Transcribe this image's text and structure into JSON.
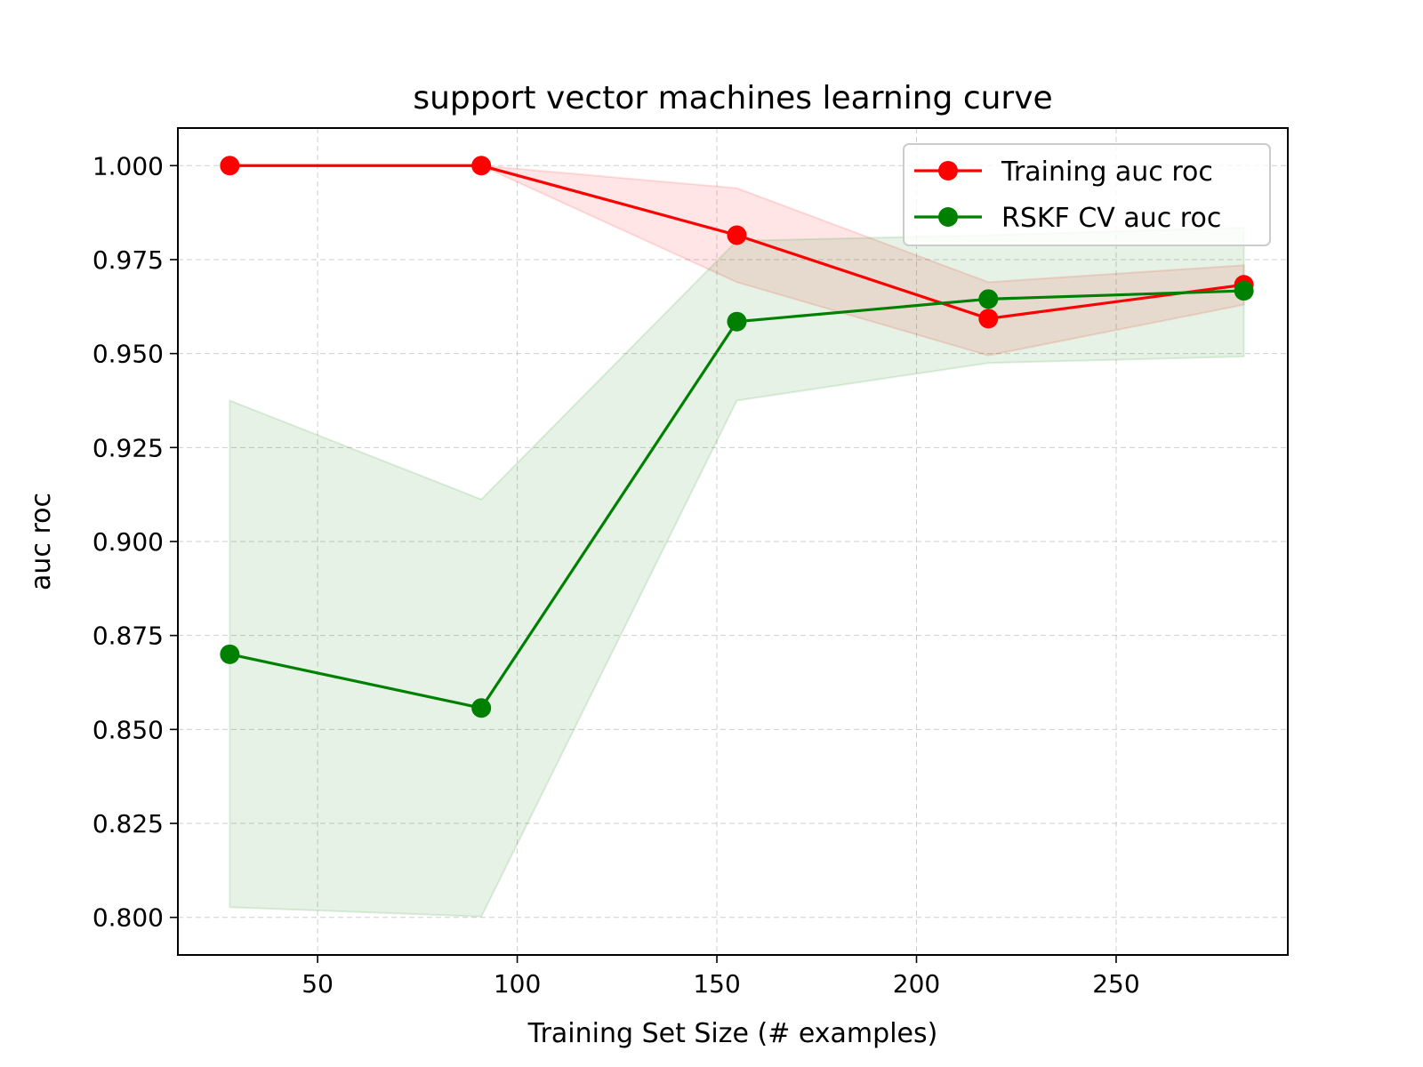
{
  "chart_data": {
    "type": "line",
    "title": "support vector machines learning curve",
    "xlabel": "Training Set Size (# examples)",
    "ylabel": "auc roc",
    "xlim": [
      15,
      293
    ],
    "ylim": [
      0.79,
      1.01
    ],
    "xticks": [
      50,
      100,
      150,
      200,
      250
    ],
    "yticks": [
      0.8,
      0.825,
      0.85,
      0.875,
      0.9,
      0.925,
      0.95,
      0.975,
      1.0
    ],
    "xtick_labels": [
      "50",
      "100",
      "150",
      "200",
      "250"
    ],
    "ytick_labels": [
      "0.800",
      "0.825",
      "0.850",
      "0.875",
      "0.900",
      "0.925",
      "0.950",
      "0.975",
      "1.000"
    ],
    "grid": true,
    "legend_position": "top-right",
    "x": [
      28,
      91,
      155,
      218,
      282
    ],
    "series": [
      {
        "name": "Training auc roc",
        "color": "#ff0000",
        "values": [
          1.0,
          1.0,
          0.9815,
          0.9593,
          0.9683
        ],
        "band_upper": [
          1.0,
          1.0,
          0.994,
          0.969,
          0.9735
        ],
        "band_lower": [
          1.0,
          1.0,
          0.969,
          0.9495,
          0.963
        ],
        "band_color": "#ff0000"
      },
      {
        "name": "RSKF CV auc roc",
        "color": "#008000",
        "values": [
          0.87,
          0.8557,
          0.9585,
          0.9645,
          0.9667
        ],
        "band_upper": [
          0.9375,
          0.9112,
          0.98,
          0.9815,
          0.9835
        ],
        "band_lower": [
          0.8027,
          0.8002,
          0.9375,
          0.9475,
          0.9492
        ],
        "band_color": "#008000"
      }
    ]
  }
}
